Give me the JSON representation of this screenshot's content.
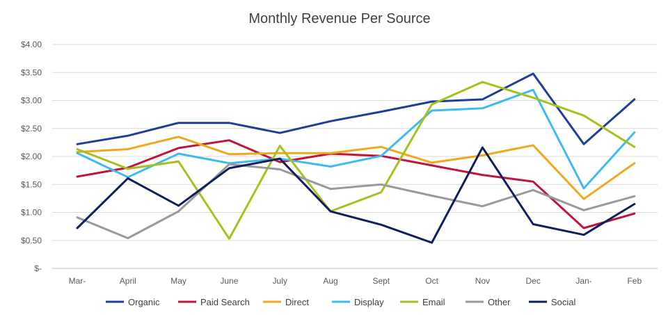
{
  "chart_data": {
    "type": "line",
    "title": "Monthly Revenue Per Source",
    "xlabel": "",
    "ylabel": "",
    "categories": [
      "Mar-",
      "April",
      "May",
      "June",
      "July",
      "Aug",
      "Sept",
      "Oct",
      "Nov",
      "Dec",
      "Jan-",
      "Feb"
    ],
    "ylim": [
      0,
      4
    ],
    "yticks": [
      0,
      0.5,
      1,
      1.5,
      2,
      2.5,
      3,
      3.5,
      4
    ],
    "ytick_labels": [
      "$-",
      "$0.50",
      "$1.00",
      "$1.50",
      "$2.00",
      "$2.50",
      "$3.00",
      "$3.50",
      "$4.00"
    ],
    "grid": true,
    "legend_position": "bottom",
    "series": [
      {
        "name": "Organic",
        "color": "#1f3d99",
        "values": [
          2.22,
          2.37,
          2.6,
          2.6,
          2.42,
          2.63,
          2.8,
          2.98,
          3.02,
          3.48,
          2.22,
          3.02
        ]
      },
      {
        "name": "Paid Search",
        "color": "#c0143c",
        "values": [
          1.64,
          1.8,
          2.15,
          2.29,
          1.9,
          2.05,
          2.01,
          1.84,
          1.67,
          1.55,
          0.72,
          0.98
        ]
      },
      {
        "name": "Direct",
        "color": "#f2a81d",
        "values": [
          2.08,
          2.13,
          2.35,
          2.04,
          2.06,
          2.06,
          2.17,
          1.89,
          2.02,
          2.2,
          1.24,
          1.88
        ]
      },
      {
        "name": "Display",
        "color": "#3dbbf0",
        "values": [
          2.06,
          1.63,
          2.05,
          1.88,
          1.96,
          1.82,
          2.01,
          2.82,
          2.86,
          3.19,
          1.43,
          2.43
        ]
      },
      {
        "name": "Email",
        "color": "#a3c21d",
        "values": [
          2.13,
          1.78,
          1.91,
          0.53,
          2.19,
          1.02,
          1.36,
          2.93,
          3.33,
          3.05,
          2.73,
          2.17
        ]
      },
      {
        "name": "Other",
        "color": "#999999",
        "values": [
          0.91,
          0.54,
          1.02,
          1.86,
          1.77,
          1.42,
          1.5,
          1.3,
          1.11,
          1.4,
          1.04,
          1.29
        ]
      },
      {
        "name": "Social",
        "color": "#0f1f5c",
        "values": [
          0.72,
          1.61,
          1.12,
          1.79,
          1.96,
          1.02,
          0.78,
          0.46,
          2.16,
          0.79,
          0.6,
          1.15
        ]
      }
    ]
  }
}
